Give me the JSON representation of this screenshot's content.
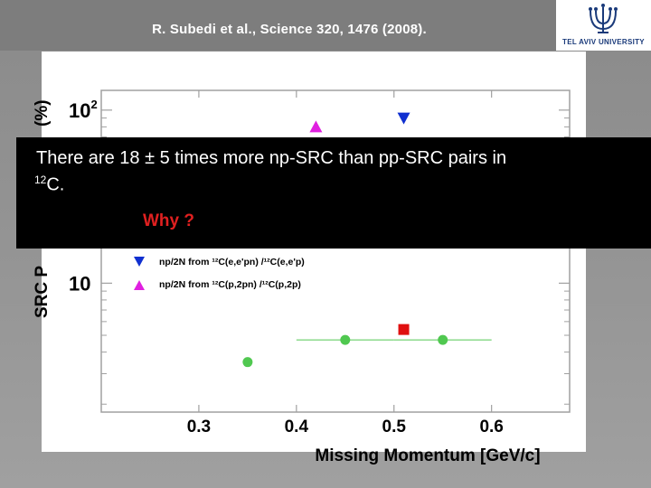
{
  "header": {
    "citation": "R. Subedi et al., Science 320, 1476 (2008).",
    "logo_text": "TEL AVIV UNIVERSITY"
  },
  "overlay": {
    "line1": "There are 18 ± 5 times more np-SRC than pp-SRC pairs in",
    "line2_sup": "12",
    "line2_text": "C.",
    "why": "Why ?"
  },
  "chart_data": {
    "type": "scatter",
    "xlabel": "Missing Momentum [GeV/c]",
    "ylabel": "SRC P",
    "ylabel_tail": "(%)",
    "x_ticks": [
      "0.3",
      "0.4",
      "0.5",
      "0.6"
    ],
    "y_ticks": [
      {
        "value": 10,
        "base": "10",
        "exp": ""
      },
      {
        "value": 100,
        "base": "10",
        "exp": "2"
      }
    ],
    "xlim": [
      0.2,
      0.68
    ],
    "ylim": [
      1.8,
      130
    ],
    "log_y": true,
    "legend": [
      {
        "symbol": "triangle-down",
        "color": "#1030d0",
        "label": "np/2N from ¹²C(e,e'pn) /¹²C(e,e'p)"
      },
      {
        "symbol": "triangle-up",
        "color": "#e020e0",
        "label": "np/2N from ¹²C(p,2pn) /¹²C(p,2p)"
      }
    ],
    "series": [
      {
        "symbol": "triangle-down",
        "color": "#1030d0",
        "points": [
          {
            "x": 0.51,
            "y": 90
          }
        ]
      },
      {
        "symbol": "triangle-up",
        "color": "#e020e0",
        "points": [
          {
            "x": 0.42,
            "y": 80
          }
        ]
      },
      {
        "symbol": "square",
        "color": "#e01010",
        "points": [
          {
            "x": 0.51,
            "y": 5.4
          }
        ]
      },
      {
        "symbol": "circle",
        "color": "#50c850",
        "points": [
          {
            "x": 0.35,
            "y": 3.5,
            "xerr": 0
          },
          {
            "x": 0.45,
            "y": 4.7,
            "xerr": 0.05
          },
          {
            "x": 0.55,
            "y": 4.7,
            "xerr": 0.05
          }
        ]
      }
    ]
  }
}
